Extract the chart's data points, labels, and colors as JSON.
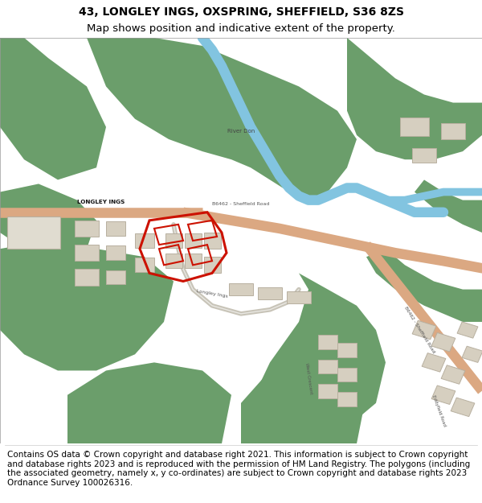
{
  "title_line1": "43, LONGLEY INGS, OXSPRING, SHEFFIELD, S36 8ZS",
  "title_line2": "Map shows position and indicative extent of the property.",
  "footer_text": "Contains OS data © Crown copyright and database right 2021. This information is subject to Crown copyright and database rights 2023 and is reproduced with the permission of HM Land Registry. The polygons (including the associated geometry, namely x, y co-ordinates) are subject to Crown copyright and database rights 2023 Ordnance Survey 100026316.",
  "title_fontsize": 10,
  "footer_fontsize": 7.5,
  "fig_width": 6.0,
  "fig_height": 6.25,
  "background_color": "#ffffff",
  "map_bg_color": "#f2f0eb",
  "green_color": "#6b9e6b",
  "blue_color": "#82c4e0",
  "road_color": "#dba882",
  "building_color": "#d6cfc0",
  "building_outline": "#b8b0a0",
  "red_color": "#cc1100",
  "label_color": "#444444",
  "road_label_color": "#555555"
}
